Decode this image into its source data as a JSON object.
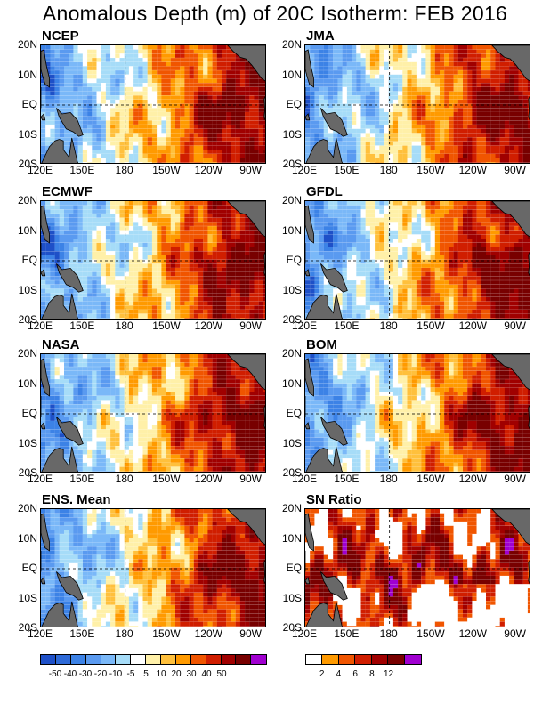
{
  "title": "Anomalous Depth (m) of 20C Isotherm: FEB 2016",
  "panels": [
    {
      "name": "NCEP",
      "kind": "anomaly"
    },
    {
      "name": "JMA",
      "kind": "anomaly"
    },
    {
      "name": "ECMWF",
      "kind": "anomaly"
    },
    {
      "name": "GFDL",
      "kind": "anomaly"
    },
    {
      "name": "NASA",
      "kind": "anomaly"
    },
    {
      "name": "BOM",
      "kind": "anomaly"
    },
    {
      "name": "ENS. Mean",
      "kind": "anomaly"
    },
    {
      "name": "SN Ratio",
      "kind": "snr"
    }
  ],
  "lat_ticks": [
    "20N",
    "10N",
    "EQ",
    "10S",
    "20S"
  ],
  "lon_ticks": [
    "120E",
    "150E",
    "180",
    "150W",
    "120W",
    "90W"
  ],
  "anomaly_colorbar": {
    "colors": [
      "#1e50c8",
      "#2e6ad8",
      "#3c82e6",
      "#5a9af0",
      "#7ab8f8",
      "#a6dcf8",
      "#ffffff",
      "#fff0a8",
      "#ffc03c",
      "#ff9a00",
      "#f05500",
      "#d01e00",
      "#a00000",
      "#780000",
      "#a000d0"
    ],
    "labels": [
      "-50",
      "-40",
      "-30",
      "-20",
      "-10",
      "-5",
      "5",
      "10",
      "20",
      "30",
      "40",
      "50"
    ]
  },
  "snr_colorbar": {
    "colors": [
      "#ffffff",
      "#ff9a00",
      "#f05500",
      "#d01e00",
      "#a00000",
      "#780000",
      "#a000d0"
    ],
    "labels": [
      "2",
      "4",
      "6",
      "8",
      "12"
    ]
  },
  "map_colors": {
    "land": "#686868",
    "coast": "#000000"
  }
}
